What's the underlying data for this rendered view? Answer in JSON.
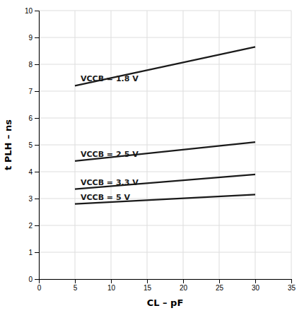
{
  "chart_data": {
    "type": "line",
    "xlabel": "CL – pF",
    "ylabel": "t PLH – ns",
    "x": [
      5,
      30
    ],
    "series": [
      {
        "name": "VCCB = 1.8 V",
        "color": "#1a1a1a",
        "values": [
          7.2,
          8.65
        ]
      },
      {
        "name": "VCCB = 2.5 V",
        "color": "#1a1a1a",
        "values": [
          4.4,
          5.1
        ]
      },
      {
        "name": "VCCB = 3.3 V",
        "color": "#1a1a1a",
        "values": [
          3.35,
          3.9
        ]
      },
      {
        "name": "VCCB = 5 V",
        "color": "#1a1a1a",
        "values": [
          2.8,
          3.15
        ]
      }
    ],
    "xlim": [
      0,
      35
    ],
    "ylim": [
      0,
      10
    ],
    "xticks": [
      0,
      5,
      10,
      15,
      20,
      25,
      30,
      35
    ],
    "yticks": [
      0,
      1,
      2,
      3,
      4,
      5,
      6,
      7,
      8,
      9,
      10
    ],
    "grid": true
  }
}
